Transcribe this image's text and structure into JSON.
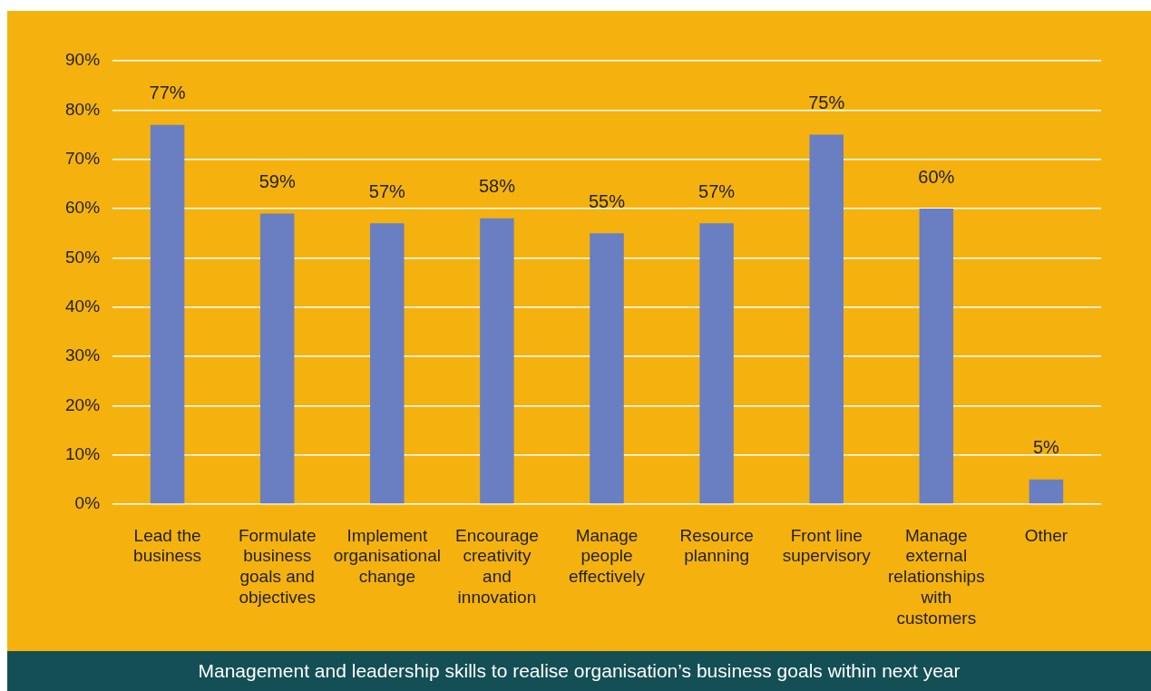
{
  "chart_data": {
    "type": "bar",
    "title": "Management and leadership skills to realise organisation’s business goals within next year",
    "categories": [
      "Lead the business",
      "Formulate business goals and objectives",
      "Implement organisational change",
      "Encourage creativity and innovation",
      "Manage people effectively",
      "Resource planning",
      "Front line supervisory",
      "Manage external relationships with customers",
      "Other"
    ],
    "values": [
      77,
      59,
      57,
      58,
      55,
      57,
      75,
      60,
      5
    ],
    "value_labels": [
      "77%",
      "59%",
      "57%",
      "58%",
      "55%",
      "57%",
      "75%",
      "60%",
      "5%"
    ],
    "color": "#6a7fc1",
    "ylim": [
      0,
      90
    ],
    "yticks": [
      {
        "value": 0,
        "label": "0%"
      },
      {
        "value": 10,
        "label": "10%"
      },
      {
        "value": 20,
        "label": "20%"
      },
      {
        "value": 30,
        "label": "30%"
      },
      {
        "value": 40,
        "label": "40%"
      },
      {
        "value": 50,
        "label": "50%"
      },
      {
        "value": 60,
        "label": "60%"
      },
      {
        "value": 70,
        "label": "70%"
      },
      {
        "value": 80,
        "label": "80%"
      },
      {
        "value": 90,
        "label": "90%"
      }
    ],
    "grid": "y"
  }
}
